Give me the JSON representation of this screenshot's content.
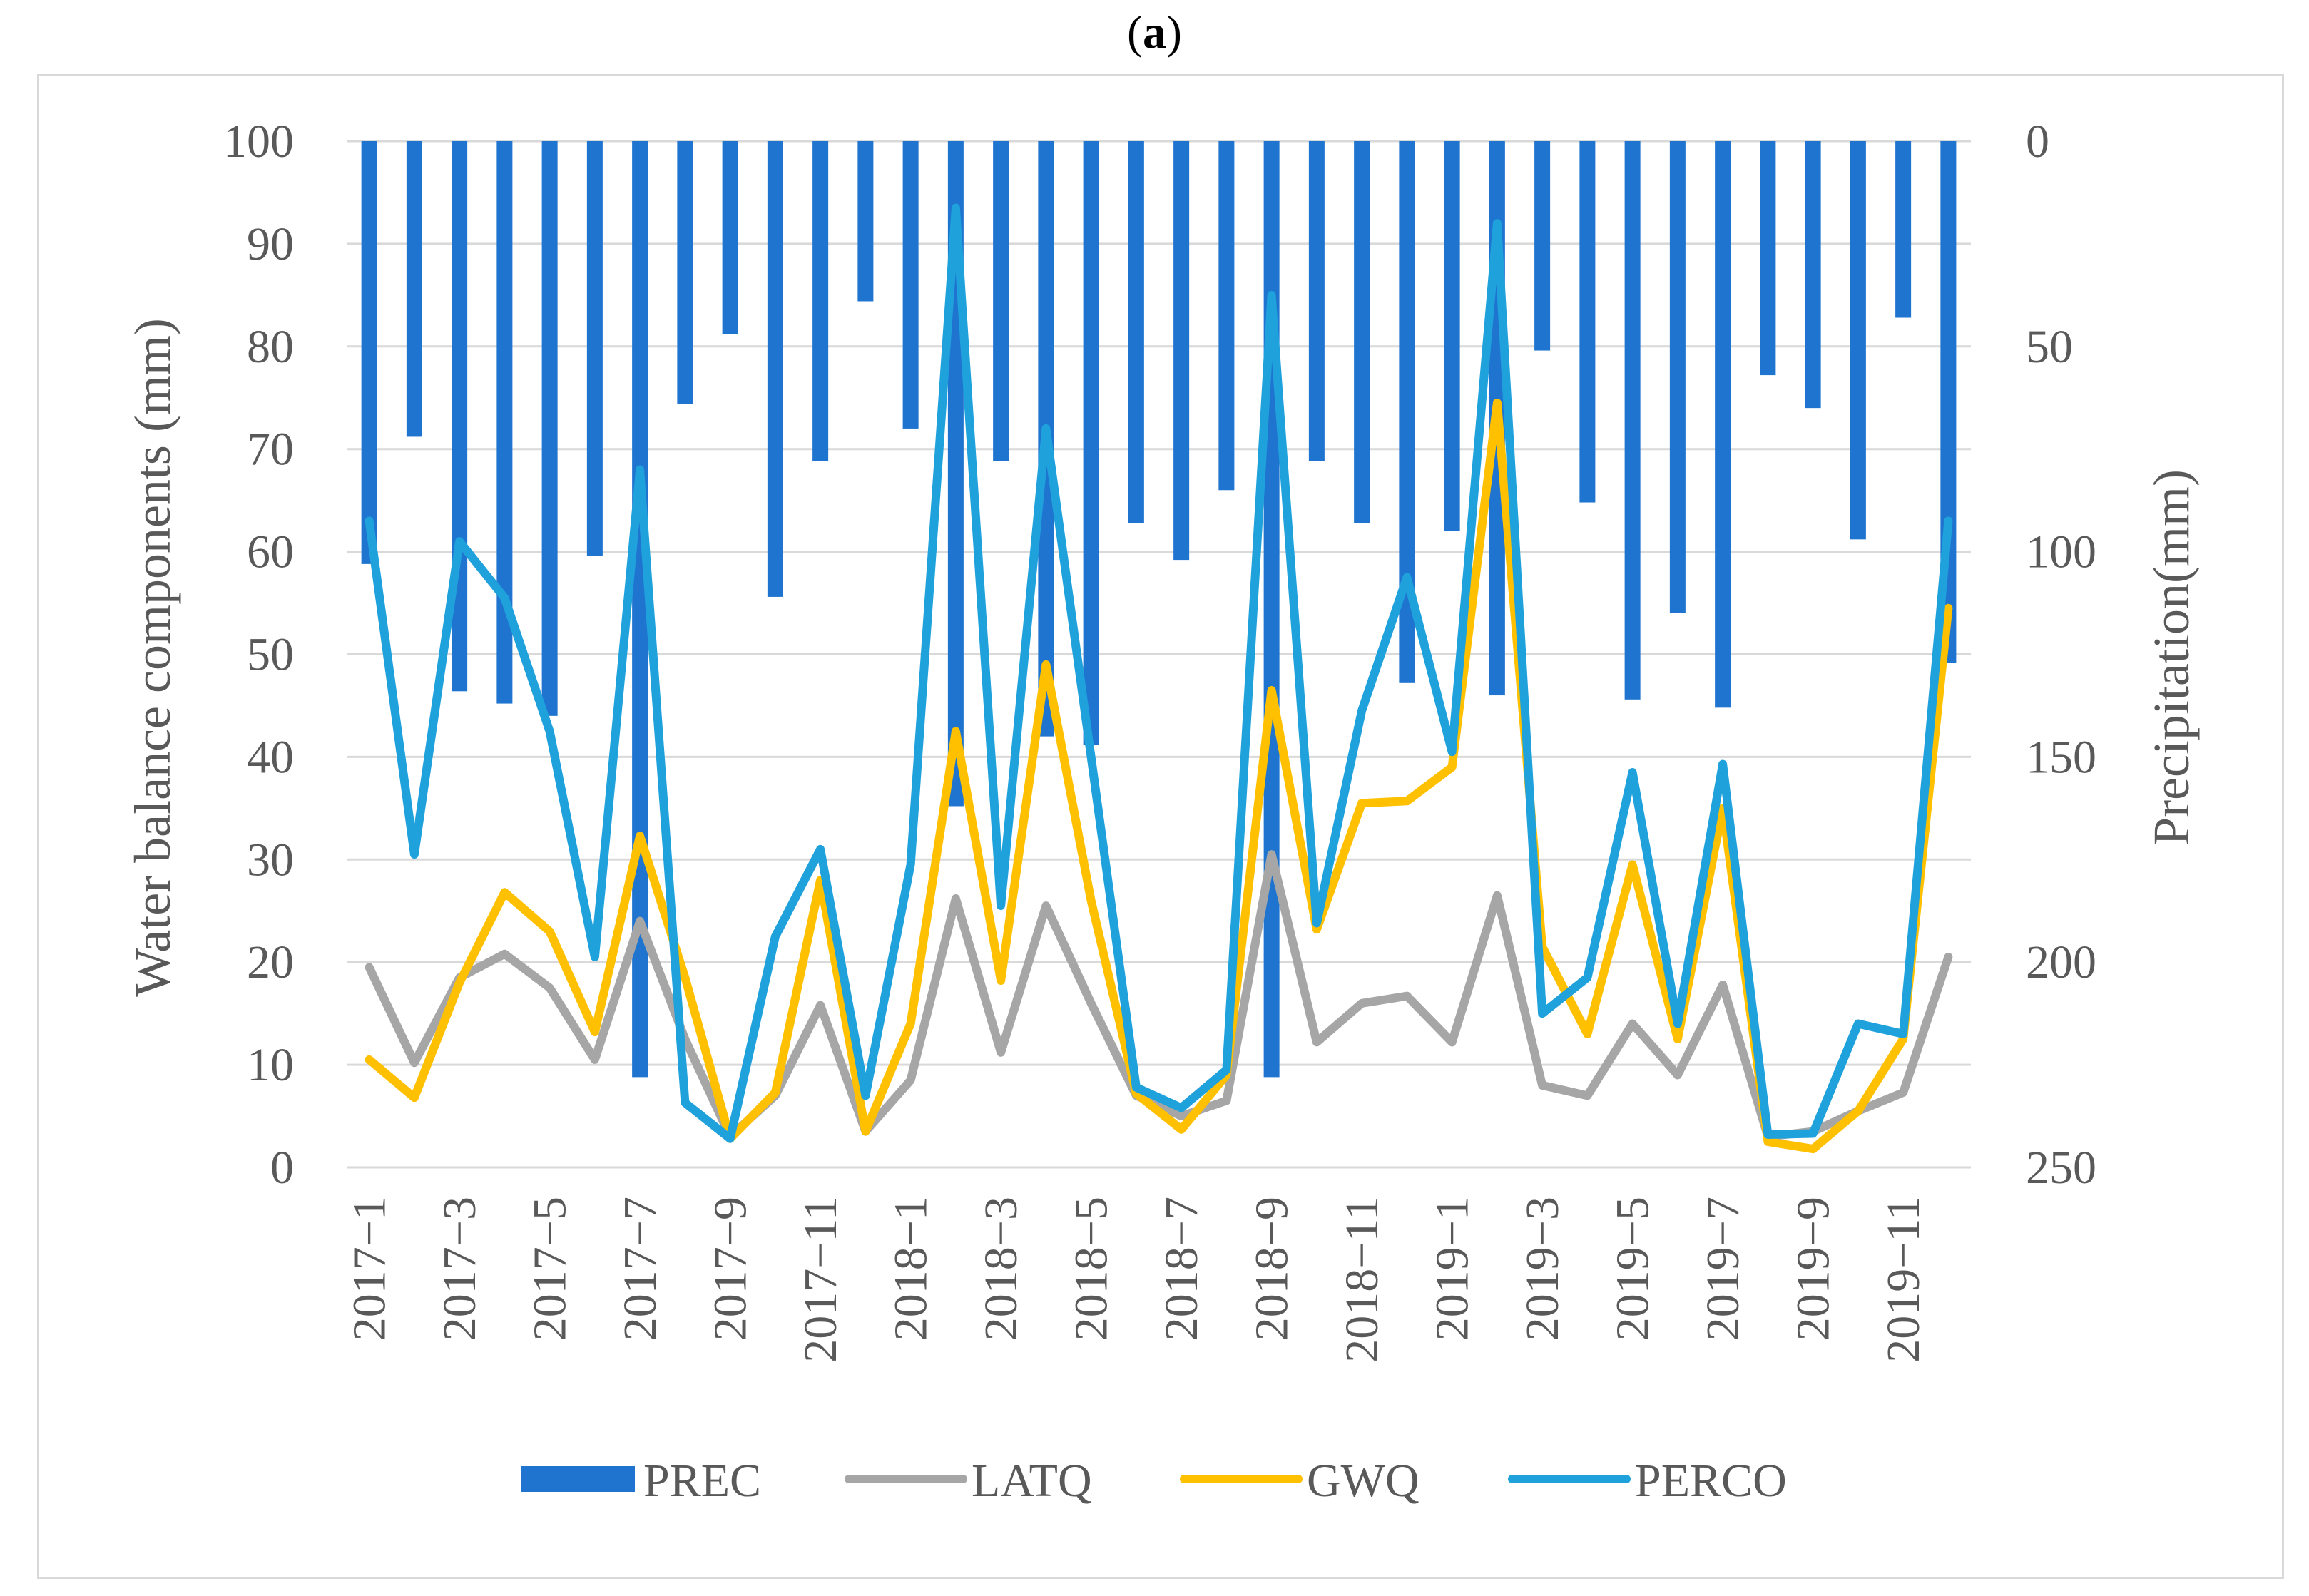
{
  "panel_label": {
    "open": "(",
    "letter": "a",
    "close": ")"
  },
  "colors": {
    "PREC": "#1f74cf",
    "LATQ": "#a6a6a6",
    "GWQ": "#ffc000",
    "PERCO": "#1fa1dc",
    "grid": "#d9d9d9",
    "text": "#595959"
  },
  "chart_data": {
    "type": "bar+line",
    "title": "(a)",
    "months": [
      "2017-1",
      "2017-2",
      "2017-3",
      "2017-4",
      "2017-5",
      "2017-6",
      "2017-7",
      "2017-8",
      "2017-9",
      "2017-10",
      "2017-11",
      "2017-12",
      "2018-1",
      "2018-2",
      "2018-3",
      "2018-4",
      "2018-5",
      "2018-6",
      "2018-7",
      "2018-8",
      "2018-9",
      "2018-10",
      "2018-11",
      "2018-12",
      "2019-1",
      "2019-2",
      "2019-3",
      "2019-4",
      "2019-5",
      "2019-6",
      "2019-7",
      "2019-8",
      "2019-9",
      "2019-10",
      "2019-11",
      "2019-12"
    ],
    "x_tick_labels": [
      "2017−1",
      "2017−3",
      "2017−5",
      "2017−7",
      "2017−9",
      "2017−11",
      "2018−1",
      "2018−3",
      "2018−5",
      "2018−7",
      "2018−9",
      "2018−11",
      "2019−1",
      "2019−3",
      "2019−5",
      "2019−7",
      "2019−9",
      "2019−11"
    ],
    "ylabel": "Water balance components (mm)",
    "ylim": [
      0,
      100
    ],
    "y_ticks": [
      "0",
      "10",
      "20",
      "30",
      "40",
      "50",
      "60",
      "70",
      "80",
      "90",
      "100"
    ],
    "y2label": "Precipitation(mm)",
    "y2lim": [
      0,
      250
    ],
    "y2_inverted": true,
    "y2_ticks": [
      "0",
      "50",
      "100",
      "150",
      "200",
      "250"
    ],
    "series": [
      {
        "name": "PREC",
        "type": "bar",
        "axis": "right",
        "values": [
          103,
          72,
          134,
          137,
          140,
          101,
          228,
          64,
          47,
          111,
          78,
          39,
          70,
          162,
          78,
          145,
          147,
          93,
          102,
          85,
          228,
          78,
          93,
          132,
          95,
          135,
          51,
          88,
          136,
          115,
          138,
          57,
          65,
          97,
          43,
          127
        ]
      },
      {
        "name": "LATQ",
        "type": "line",
        "axis": "left",
        "values": [
          19.5,
          10.2,
          18.5,
          20.8,
          17.5,
          10.5,
          24,
          12.5,
          3,
          7,
          15.8,
          3.5,
          8.5,
          26.2,
          11.2,
          25.5,
          16,
          7,
          5,
          6.5,
          30.5,
          12.2,
          16,
          16.7,
          12.2,
          26.5,
          8,
          7,
          14,
          9,
          17.8,
          3,
          3.5,
          5.5,
          7.3,
          20.5
        ]
      },
      {
        "name": "GWQ",
        "type": "line",
        "axis": "left",
        "values": [
          10.5,
          6.8,
          18,
          26.8,
          23,
          13.2,
          32.3,
          18.5,
          2.8,
          7.3,
          28,
          3.5,
          14,
          42.5,
          18.2,
          49,
          26,
          7.2,
          3.7,
          9,
          46.5,
          23.2,
          35.5,
          35.7,
          39,
          74.5,
          21.5,
          13,
          29.5,
          12.5,
          35,
          2.5,
          1.8,
          5.5,
          12.5,
          54.5
        ]
      },
      {
        "name": "PERCO",
        "type": "line",
        "axis": "left",
        "values": [
          63,
          30.5,
          61,
          55.5,
          42.5,
          20.5,
          68,
          6.3,
          2.8,
          22.5,
          31,
          7,
          29.5,
          93.5,
          25.5,
          72,
          40,
          7.8,
          5.8,
          9.5,
          85,
          23.8,
          44.5,
          57.5,
          40.5,
          92,
          15,
          18.5,
          38.5,
          14,
          39.3,
          3.2,
          3.3,
          14,
          13,
          63
        ]
      }
    ],
    "legend": [
      "PREC",
      "LATQ",
      "GWQ",
      "PERCO"
    ],
    "legend_position": "bottom"
  }
}
